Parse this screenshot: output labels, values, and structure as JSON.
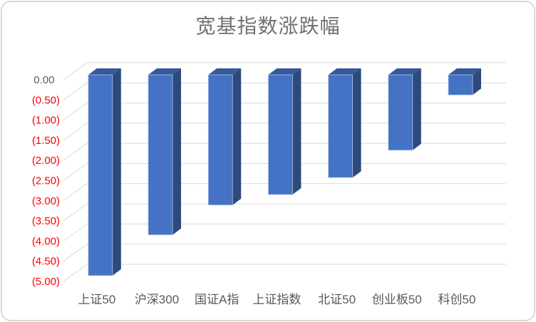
{
  "chart_data": {
    "type": "bar",
    "style": "3d-column",
    "title": "宽基指数涨跌幅",
    "categories": [
      "上证50",
      "沪深300",
      "国证A指",
      "上证指数",
      "北证50",
      "创业板50",
      "科创50"
    ],
    "values": [
      -4.98,
      -3.97,
      -3.23,
      -2.97,
      -2.55,
      -1.87,
      -0.5
    ],
    "series_count": 1,
    "xlabel": "",
    "ylabel": "",
    "ylim": [
      -5.0,
      0.0
    ],
    "y_tick_step": 0.5,
    "y_tick_labels": [
      "0.00",
      "(0.50)",
      "(1.00)",
      "(1.50)",
      "(2.00)",
      "(2.50)",
      "(3.00)",
      "(3.50)",
      "(4.00)",
      "(4.50)",
      "(5.00)"
    ],
    "grid": true,
    "legend": false,
    "colors": {
      "bar_front": "#4472C4",
      "bar_top": "#36589C",
      "bar_side": "#2D4A7D",
      "bar_edge": "#B4C7E7",
      "gridline": "#D9D9D9",
      "tick_negative": "#FF0000",
      "tick_zero": "#595959",
      "category_label": "#595959",
      "title_color": "#717171",
      "frame_border": "#D9D9D9"
    }
  }
}
